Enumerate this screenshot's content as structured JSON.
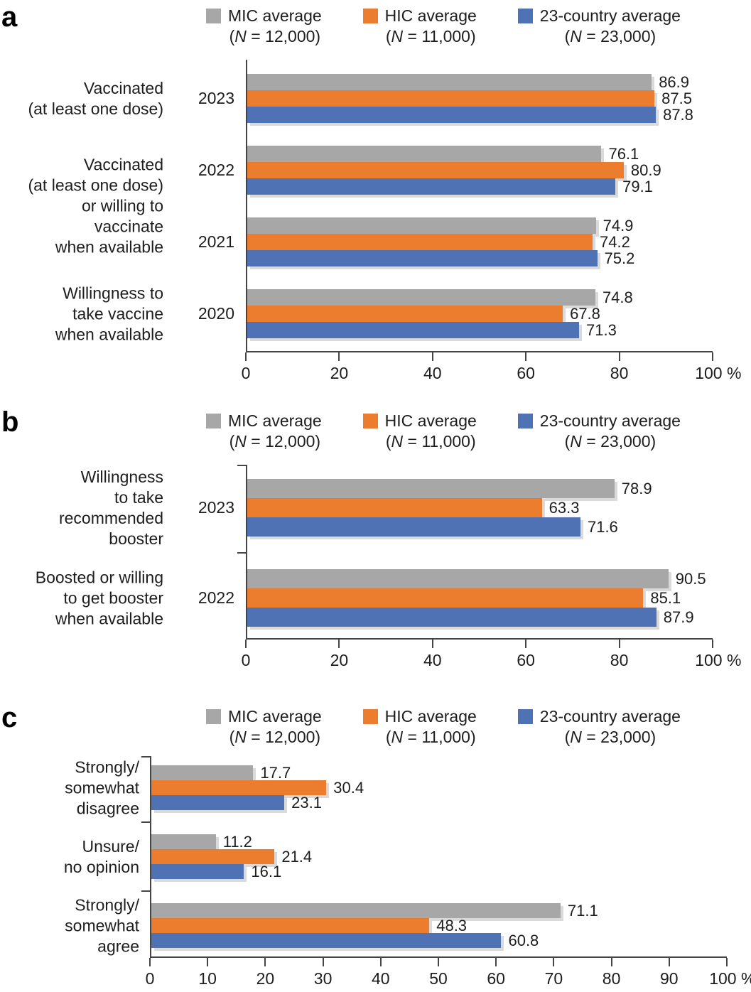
{
  "colors": {
    "mic": "#a7a7a7",
    "hic": "#ed7d2e",
    "avg": "#4e72b3",
    "axis": "#454545",
    "text": "#1d1d1f",
    "bar_shadow": "#dadada"
  },
  "legend": {
    "items": [
      {
        "label": "MIC average",
        "n_letter": "N",
        "n_value": "12,000",
        "color_key": "mic"
      },
      {
        "label": "HIC average",
        "n_letter": "N",
        "n_value": "11,000",
        "color_key": "hic"
      },
      {
        "label": "23-country average",
        "n_letter": "N",
        "n_value": "23,000",
        "color_key": "avg"
      }
    ]
  },
  "chart_data": [
    {
      "panel": "a",
      "type": "bar",
      "orientation": "horizontal",
      "unit": "%",
      "xlim": [
        0,
        100
      ],
      "grid": false,
      "legend_position": "top",
      "series_names": [
        "MIC average (N = 12,000)",
        "HIC average (N = 11,000)",
        "23-country average (N = 23,000)"
      ],
      "xticks": [
        {
          "v": 0,
          "label": "0"
        },
        {
          "v": 20,
          "label": "20"
        },
        {
          "v": 40,
          "label": "40"
        },
        {
          "v": 60,
          "label": "60"
        },
        {
          "v": 80,
          "label": "80"
        },
        {
          "v": 100,
          "label": "100 %"
        }
      ],
      "row_labels": [
        {
          "lines": [
            "Vaccinated",
            "(at least one dose)"
          ],
          "row": 1,
          "span": 1
        },
        {
          "lines": [
            "Vaccinated",
            "(at least one dose)",
            "or willing to",
            "vaccinate",
            "when available"
          ],
          "row": 2,
          "span": 2
        },
        {
          "lines": [
            "Willingness to",
            "take vaccine",
            "when available"
          ],
          "row": 4,
          "span": 1
        }
      ],
      "groups": [
        {
          "year": "2023",
          "values": [
            86.9,
            87.5,
            87.8
          ]
        },
        {
          "year": "2022",
          "values": [
            76.1,
            80.9,
            79.1
          ]
        },
        {
          "year": "2021",
          "values": [
            74.9,
            74.2,
            75.2
          ]
        },
        {
          "year": "2020",
          "values": [
            74.8,
            67.8,
            71.3
          ]
        }
      ],
      "axis_group_ticks": false
    },
    {
      "panel": "b",
      "type": "bar",
      "orientation": "horizontal",
      "unit": "%",
      "xlim": [
        0,
        100
      ],
      "grid": false,
      "legend_position": "top",
      "series_names": [
        "MIC average (N = 12,000)",
        "HIC average (N = 11,000)",
        "23-country average (N = 23,000)"
      ],
      "xticks": [
        {
          "v": 0,
          "label": "0"
        },
        {
          "v": 20,
          "label": "20"
        },
        {
          "v": 40,
          "label": "40"
        },
        {
          "v": 60,
          "label": "60"
        },
        {
          "v": 80,
          "label": "80"
        },
        {
          "v": 100,
          "label": "100 %"
        }
      ],
      "row_labels": [
        {
          "lines": [
            "Willingness",
            "to take",
            "recommended",
            "booster"
          ],
          "row": 1,
          "span": 1
        },
        {
          "lines": [
            "Boosted or willing",
            "to get booster",
            "when available"
          ],
          "row": 2,
          "span": 1
        }
      ],
      "groups": [
        {
          "year": "2023",
          "values": [
            78.9,
            63.3,
            71.6
          ]
        },
        {
          "year": "2022",
          "values": [
            90.5,
            85.1,
            87.9
          ]
        }
      ],
      "axis_group_ticks": true
    },
    {
      "panel": "c",
      "type": "bar",
      "orientation": "horizontal",
      "unit": "%",
      "xlim": [
        0,
        100
      ],
      "grid": false,
      "legend_position": "top",
      "series_names": [
        "MIC average (N = 12,000)",
        "HIC average (N = 11,000)",
        "23-country average (N = 23,000)"
      ],
      "xticks": [
        {
          "v": 0,
          "label": "0"
        },
        {
          "v": 10,
          "label": "10"
        },
        {
          "v": 20,
          "label": "20"
        },
        {
          "v": 30,
          "label": "30"
        },
        {
          "v": 40,
          "label": "40"
        },
        {
          "v": 50,
          "label": "50"
        },
        {
          "v": 60,
          "label": "60"
        },
        {
          "v": 70,
          "label": "70"
        },
        {
          "v": 80,
          "label": "80"
        },
        {
          "v": 90,
          "label": "90"
        },
        {
          "v": 100,
          "label": "100 %"
        }
      ],
      "row_labels": [
        {
          "lines": [
            "Strongly/",
            "somewhat",
            "disagree"
          ],
          "row": 1,
          "span": 1
        },
        {
          "lines": [
            "Unsure/",
            "no opinion"
          ],
          "row": 2,
          "span": 1
        },
        {
          "lines": [
            "Strongly/",
            "somewhat",
            "agree"
          ],
          "row": 3,
          "span": 1
        }
      ],
      "groups": [
        {
          "year": null,
          "values": [
            17.7,
            30.4,
            23.1
          ]
        },
        {
          "year": null,
          "values": [
            11.2,
            21.4,
            16.1
          ]
        },
        {
          "year": null,
          "values": [
            71.1,
            48.3,
            60.8
          ]
        }
      ],
      "axis_group_ticks": true
    }
  ]
}
